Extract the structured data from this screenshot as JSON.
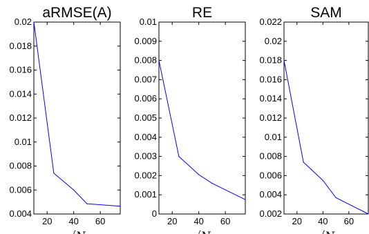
{
  "chart_data": [
    {
      "type": "line",
      "title": "aRMSE(A)",
      "xlabel": "√N",
      "ylabel": "",
      "xlim": [
        10,
        75
      ],
      "ylim": [
        0.004,
        0.02
      ],
      "xticks": [
        20,
        40,
        60
      ],
      "yticks": [
        0.004,
        0.006,
        0.008,
        0.01,
        0.012,
        0.014,
        0.016,
        0.018,
        0.02
      ],
      "ytick_labels": [
        "0.004",
        "0.006",
        "0.008",
        "0.01",
        "0.012",
        "0.014",
        "0.016",
        "0.018",
        "0.02"
      ],
      "grid": false,
      "color": "#0000ff",
      "x": [
        10,
        25,
        40,
        50,
        75
      ],
      "y": [
        0.02,
        0.0074,
        0.006,
        0.00485,
        0.00465
      ]
    },
    {
      "type": "line",
      "title": "RE",
      "xlabel": "√N",
      "ylabel": "",
      "xlim": [
        10,
        75
      ],
      "ylim": [
        0,
        0.01
      ],
      "xticks": [
        20,
        40,
        60
      ],
      "yticks": [
        0,
        0.001,
        0.002,
        0.003,
        0.004,
        0.005,
        0.006,
        0.007,
        0.008,
        0.009,
        0.01
      ],
      "ytick_labels": [
        "0",
        "0.001",
        "0.002",
        "0.003",
        "0.004",
        "0.005",
        "0.006",
        "0.007",
        "0.008",
        "0.009",
        "0.01"
      ],
      "grid": false,
      "color": "#0000ff",
      "x": [
        10,
        25,
        40,
        50,
        75
      ],
      "y": [
        0.008,
        0.003,
        0.00205,
        0.0016,
        0.00075
      ]
    },
    {
      "type": "line",
      "title": "SAM",
      "xlabel": "√N",
      "ylabel": "",
      "xlim": [
        10,
        75
      ],
      "ylim": [
        0.002,
        0.022
      ],
      "xticks": [
        20,
        40,
        60
      ],
      "yticks": [
        0.002,
        0.004,
        0.006,
        0.008,
        0.01,
        0.012,
        0.014,
        0.016,
        0.018,
        0.02,
        0.022
      ],
      "ytick_labels": [
        "0.002",
        "0.004",
        "0.006",
        "0.008",
        "0.01",
        "0.012",
        "0.014",
        "0.016",
        "0.018",
        "0.02",
        "0.022"
      ],
      "grid": false,
      "color": "#0000ff",
      "x": [
        10,
        25,
        40,
        50,
        75
      ],
      "y": [
        0.018,
        0.0074,
        0.0055,
        0.0037,
        0.002
      ]
    }
  ]
}
